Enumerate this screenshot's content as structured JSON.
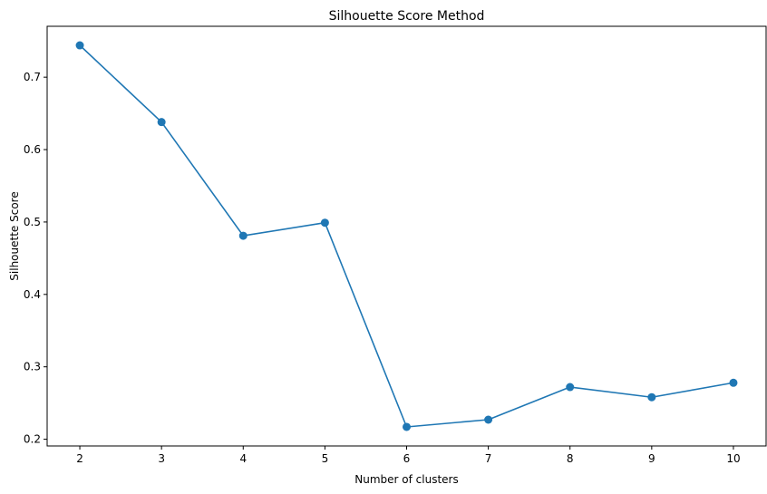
{
  "chart_data": {
    "type": "line",
    "title": "Silhouette Score Method",
    "xlabel": "Number of clusters",
    "ylabel": "Silhouette Score",
    "x": [
      2,
      3,
      4,
      5,
      6,
      7,
      8,
      9,
      10
    ],
    "series": [
      {
        "values": [
          0.744,
          0.638,
          0.481,
          0.499,
          0.217,
          0.227,
          0.272,
          0.258,
          0.278
        ],
        "color": "#1f77b4",
        "marker": "circle"
      }
    ],
    "xticks": [
      "2",
      "3",
      "4",
      "5",
      "6",
      "7",
      "8",
      "9",
      "10"
    ],
    "yticks": [
      "0.2",
      "0.3",
      "0.4",
      "0.5",
      "0.6",
      "0.7"
    ],
    "xlim": [
      1.6,
      10.4
    ],
    "ylim": [
      0.1907,
      0.7703
    ],
    "grid": false,
    "legend": "none"
  }
}
